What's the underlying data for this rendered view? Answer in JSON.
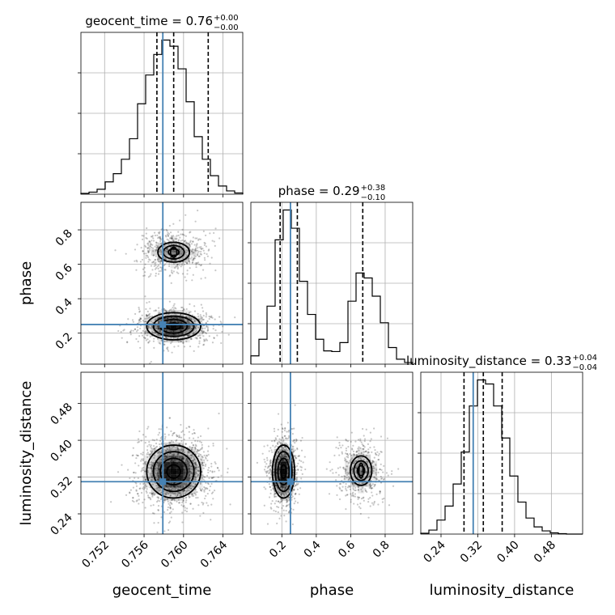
{
  "chart_data": {
    "type": "corner",
    "parameters": [
      "geocent_time",
      "phase",
      "luminosity_distance"
    ],
    "axis_labels": {
      "geocent_time": "geocent_time",
      "phase": "phase",
      "luminosity_distance": "luminosity_distance"
    },
    "ranges": {
      "geocent_time": [
        0.7496,
        0.766
      ],
      "phase": [
        0.02,
        0.96
      ],
      "luminosity_distance": [
        0.196,
        0.548
      ]
    },
    "ticks": {
      "geocent_time": [
        0.752,
        0.756,
        0.76,
        0.764
      ],
      "phase": [
        0.2,
        0.4,
        0.6,
        0.8
      ],
      "luminosity_distance": [
        0.24,
        0.32,
        0.4,
        0.48
      ]
    },
    "tick_labels": {
      "geocent_time": [
        "0.752",
        "0.756",
        "0.760",
        "0.764"
      ],
      "phase": [
        "0.2",
        "0.4",
        "0.6",
        "0.8"
      ],
      "luminosity_distance": [
        "0.24",
        "0.32",
        "0.40",
        "0.48"
      ]
    },
    "truths": {
      "geocent_time": 0.7579,
      "phase": 0.25,
      "luminosity_distance": 0.31
    },
    "quantiles": {
      "geocent_time": [
        0.7573,
        0.759,
        0.7625
      ],
      "phase": [
        0.19,
        0.29,
        0.67
      ],
      "luminosity_distance": [
        0.29,
        0.332,
        0.373
      ]
    },
    "titles": {
      "geocent_time": {
        "prefix": "geocent_time = 0.76",
        "upper": "+0.00",
        "lower": "−0.00"
      },
      "phase": {
        "prefix": "phase = 0.29",
        "upper": "+0.38",
        "lower": "−0.10"
      },
      "luminosity_distance": {
        "prefix": "luminosity_distance = 0.33",
        "upper": "+0.04",
        "lower": "−0.04"
      }
    },
    "histograms": {
      "geocent_time": {
        "edges": [
          0.7496,
          0.75042,
          0.75124,
          0.75206,
          0.75288,
          0.7537,
          0.75452,
          0.75534,
          0.75616,
          0.75698,
          0.7578,
          0.75862,
          0.75944,
          0.76026,
          0.76108,
          0.7619,
          0.76272,
          0.76354,
          0.76436,
          0.76518,
          0.766
        ],
        "counts": [
          0.2,
          0.5,
          1.2,
          3.0,
          5.0,
          8.5,
          13.5,
          22.0,
          29.0,
          34.0,
          37.5,
          36.0,
          30.5,
          22.5,
          14.0,
          8.5,
          4.5,
          2.0,
          0.8,
          0.3
        ]
      },
      "phase": {
        "edges": [
          0.02,
          0.067,
          0.114,
          0.161,
          0.208,
          0.255,
          0.302,
          0.349,
          0.396,
          0.443,
          0.49,
          0.537,
          0.584,
          0.631,
          0.678,
          0.725,
          0.772,
          0.819,
          0.866,
          0.913,
          0.96
        ],
        "counts": [
          2.5,
          7.5,
          17.5,
          37.5,
          46.5,
          41.0,
          25.0,
          15.0,
          7.5,
          4.0,
          3.8,
          6.5,
          19.0,
          27.5,
          26.0,
          20.5,
          12.5,
          5.0,
          1.5,
          0.5
        ]
      },
      "luminosity_distance": {
        "edges": [
          0.196,
          0.2136,
          0.2312,
          0.2488,
          0.2664,
          0.284,
          0.3016,
          0.3192,
          0.3368,
          0.3544,
          0.372,
          0.3896,
          0.4072,
          0.4248,
          0.4424,
          0.46,
          0.4776,
          0.4952,
          0.5128,
          0.5304,
          0.548
        ],
        "counts": [
          0.2,
          1.0,
          3.5,
          7.0,
          12.5,
          20.5,
          32.0,
          38.5,
          37.5,
          32.0,
          24.0,
          14.5,
          8.0,
          4.0,
          1.8,
          0.8,
          0.3,
          0.1,
          0.0,
          0.0
        ]
      }
    },
    "scatter_2d": [
      {
        "x": "geocent_time",
        "y": "phase",
        "modes": [
          {
            "mean": [
              0.759,
              0.67
            ],
            "sd": [
              0.0018,
              0.065
            ],
            "weight": 0.38
          },
          {
            "mean": [
              0.759,
              0.24
            ],
            "sd": [
              0.0019,
              0.055
            ],
            "weight": 0.62
          }
        ]
      },
      {
        "x": "geocent_time",
        "y": "luminosity_distance",
        "modes": [
          {
            "mean": [
              0.759,
              0.332
            ],
            "sd": [
              0.0019,
              0.04
            ],
            "weight": 1.0
          }
        ]
      },
      {
        "x": "phase",
        "y": "luminosity_distance",
        "modes": [
          {
            "mean": [
              0.21,
              0.332
            ],
            "sd": [
              0.045,
              0.04
            ],
            "weight": 0.62
          },
          {
            "mean": [
              0.66,
              0.334
            ],
            "sd": [
              0.07,
              0.036
            ],
            "weight": 0.38
          }
        ]
      }
    ],
    "contour_levels": [
      0.118,
      0.393,
      0.675,
      0.864
    ],
    "grid": true,
    "truth_color": "#4682b4",
    "contour_color": "#000000"
  }
}
